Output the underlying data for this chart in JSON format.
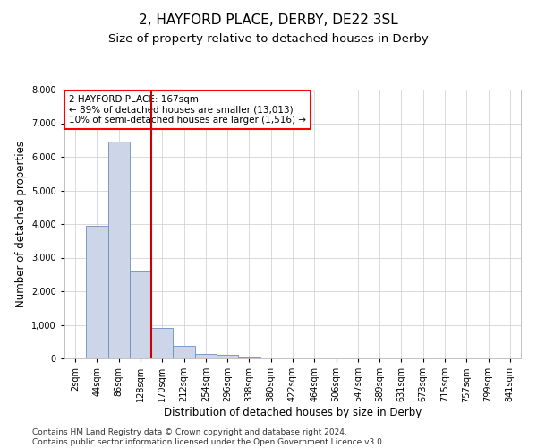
{
  "title": "2, HAYFORD PLACE, DERBY, DE22 3SL",
  "subtitle": "Size of property relative to detached houses in Derby",
  "xlabel": "Distribution of detached houses by size in Derby",
  "ylabel": "Number of detached properties",
  "footer_line1": "Contains HM Land Registry data © Crown copyright and database right 2024.",
  "footer_line2": "Contains public sector information licensed under the Open Government Licence v3.0.",
  "annotation_line1": "2 HAYFORD PLACE: 167sqm",
  "annotation_line2": "← 89% of detached houses are smaller (13,013)",
  "annotation_line3": "10% of semi-detached houses are larger (1,516) →",
  "bar_color": "#ccd6e8",
  "bar_edge_color": "#6a8fbf",
  "vline_color": "#cc0000",
  "categories": [
    "2sqm",
    "44sqm",
    "86sqm",
    "128sqm",
    "170sqm",
    "212sqm",
    "254sqm",
    "296sqm",
    "338sqm",
    "380sqm",
    "422sqm",
    "464sqm",
    "506sqm",
    "547sqm",
    "589sqm",
    "631sqm",
    "673sqm",
    "715sqm",
    "757sqm",
    "799sqm",
    "841sqm"
  ],
  "values": [
    30,
    3950,
    6450,
    2600,
    900,
    380,
    130,
    100,
    60,
    0,
    0,
    0,
    0,
    0,
    0,
    0,
    0,
    0,
    0,
    0,
    0
  ],
  "ylim": [
    0,
    8000
  ],
  "yticks": [
    0,
    1000,
    2000,
    3000,
    4000,
    5000,
    6000,
    7000,
    8000
  ],
  "background_color": "#ffffff",
  "grid_color": "#cccccc",
  "title_fontsize": 11,
  "subtitle_fontsize": 9.5,
  "axis_label_fontsize": 8.5,
  "tick_fontsize": 7,
  "footer_fontsize": 6.5,
  "annotation_fontsize": 7.5,
  "vline_index": 3.5
}
